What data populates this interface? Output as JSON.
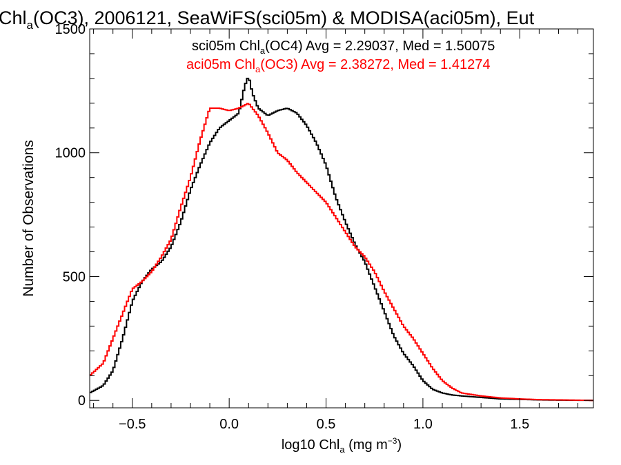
{
  "chart_data": {
    "type": "line",
    "title": {
      "prefix": "Chl",
      "sub": "a",
      "rest": "(OC3), 2006121, SeaWiFS(sci05m) & MODISA(aci05m), Eut"
    },
    "xlabel": {
      "prefix": "log10 Chl",
      "sub": "a",
      "mid": " (mg m",
      "sup": "−3",
      "end": ")"
    },
    "ylabel": "Number of Observations",
    "xlim": [
      -0.72,
      1.88
    ],
    "ylim": [
      -30,
      1500
    ],
    "xticks": [
      {
        "v": -0.5,
        "label": "−0.5"
      },
      {
        "v": 0.0,
        "label": "0.0"
      },
      {
        "v": 0.5,
        "label": "0.5"
      },
      {
        "v": 1.0,
        "label": "1.0"
      },
      {
        "v": 1.5,
        "label": "1.5"
      }
    ],
    "yticks": [
      {
        "v": 0,
        "label": "0"
      },
      {
        "v": 500,
        "label": "500"
      },
      {
        "v": 1000,
        "label": "1000"
      },
      {
        "v": 1500,
        "label": "1500"
      }
    ],
    "legend": [
      {
        "prefix": "sci05m Chl",
        "sub": "a",
        "rest": "(OC4) Avg = 2.29037, Med = 1.50075",
        "color": "#000000"
      },
      {
        "prefix": "aci05m Chl",
        "sub": "a",
        "rest": "(OC3) Avg = 2.38272, Med = 1.41274",
        "color": "#ff0000"
      }
    ],
    "series": [
      {
        "key": "sci05m",
        "color": "#000000",
        "points": [
          [
            -0.72,
            30
          ],
          [
            -0.65,
            60
          ],
          [
            -0.6,
            120
          ],
          [
            -0.55,
            250
          ],
          [
            -0.5,
            400
          ],
          [
            -0.45,
            480
          ],
          [
            -0.4,
            530
          ],
          [
            -0.35,
            560
          ],
          [
            -0.3,
            620
          ],
          [
            -0.25,
            720
          ],
          [
            -0.2,
            850
          ],
          [
            -0.15,
            950
          ],
          [
            -0.1,
            1040
          ],
          [
            -0.05,
            1100
          ],
          [
            0.0,
            1130
          ],
          [
            0.05,
            1160
          ],
          [
            0.08,
            1270
          ],
          [
            0.1,
            1310
          ],
          [
            0.12,
            1240
          ],
          [
            0.15,
            1180
          ],
          [
            0.2,
            1150
          ],
          [
            0.25,
            1170
          ],
          [
            0.3,
            1180
          ],
          [
            0.35,
            1160
          ],
          [
            0.4,
            1110
          ],
          [
            0.45,
            1040
          ],
          [
            0.5,
            950
          ],
          [
            0.55,
            820
          ],
          [
            0.6,
            720
          ],
          [
            0.65,
            630
          ],
          [
            0.7,
            560
          ],
          [
            0.75,
            460
          ],
          [
            0.8,
            360
          ],
          [
            0.85,
            260
          ],
          [
            0.9,
            190
          ],
          [
            0.95,
            140
          ],
          [
            1.0,
            80
          ],
          [
            1.05,
            45
          ],
          [
            1.1,
            30
          ],
          [
            1.15,
            22
          ],
          [
            1.2,
            18
          ],
          [
            1.3,
            12
          ],
          [
            1.4,
            6
          ],
          [
            1.5,
            4
          ],
          [
            1.6,
            2
          ],
          [
            1.7,
            1
          ],
          [
            1.88,
            0
          ]
        ]
      },
      {
        "key": "aci05m",
        "color": "#ff0000",
        "points": [
          [
            -0.72,
            100
          ],
          [
            -0.65,
            150
          ],
          [
            -0.6,
            250
          ],
          [
            -0.55,
            350
          ],
          [
            -0.5,
            450
          ],
          [
            -0.45,
            480
          ],
          [
            -0.4,
            520
          ],
          [
            -0.35,
            580
          ],
          [
            -0.3,
            650
          ],
          [
            -0.25,
            780
          ],
          [
            -0.2,
            900
          ],
          [
            -0.15,
            1050
          ],
          [
            -0.1,
            1180
          ],
          [
            -0.05,
            1180
          ],
          [
            0.0,
            1170
          ],
          [
            0.05,
            1180
          ],
          [
            0.1,
            1200
          ],
          [
            0.15,
            1150
          ],
          [
            0.2,
            1080
          ],
          [
            0.25,
            1000
          ],
          [
            0.3,
            970
          ],
          [
            0.35,
            920
          ],
          [
            0.4,
            880
          ],
          [
            0.45,
            840
          ],
          [
            0.5,
            800
          ],
          [
            0.55,
            740
          ],
          [
            0.6,
            680
          ],
          [
            0.65,
            620
          ],
          [
            0.7,
            580
          ],
          [
            0.75,
            520
          ],
          [
            0.8,
            440
          ],
          [
            0.85,
            370
          ],
          [
            0.9,
            300
          ],
          [
            0.95,
            250
          ],
          [
            1.0,
            190
          ],
          [
            1.05,
            130
          ],
          [
            1.1,
            80
          ],
          [
            1.15,
            50
          ],
          [
            1.2,
            30
          ],
          [
            1.3,
            18
          ],
          [
            1.4,
            10
          ],
          [
            1.5,
            6
          ],
          [
            1.6,
            3
          ],
          [
            1.7,
            2
          ],
          [
            1.88,
            0
          ]
        ]
      }
    ]
  }
}
